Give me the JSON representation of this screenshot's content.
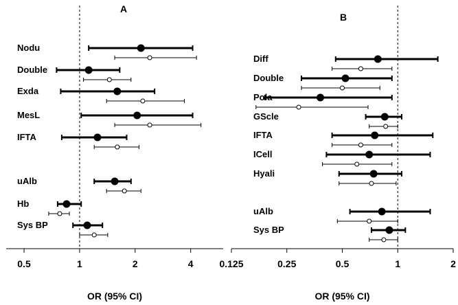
{
  "chart_data": [
    {
      "type": "forest",
      "panel_label": "A",
      "xlabel": "OR (95% CI)",
      "xscale": "log",
      "xlim": [
        0.4,
        6
      ],
      "reference_line": 1,
      "xticks": [
        0.5,
        1,
        2,
        4
      ],
      "xtick_labels": [
        "0.5",
        "1",
        "2",
        "4"
      ],
      "series_styles": {
        "filled": "thick line, filled circle",
        "open": "thin line, open circle"
      },
      "rows": [
        {
          "label": "Nodu",
          "filled": {
            "or": 2.15,
            "lo": 1.12,
            "hi": 4.1
          },
          "open": {
            "or": 2.4,
            "lo": 1.55,
            "hi": 4.3
          }
        },
        {
          "label": "Double",
          "filled": {
            "or": 1.12,
            "lo": 0.75,
            "hi": 1.65
          },
          "open": {
            "or": 1.45,
            "lo": 1.05,
            "hi": 1.9
          }
        },
        {
          "label": "Exda",
          "filled": {
            "or": 1.6,
            "lo": 0.79,
            "hi": 2.55
          },
          "open": {
            "or": 2.2,
            "lo": 1.4,
            "hi": 3.7
          }
        },
        {
          "label": "MesL",
          "filled": {
            "or": 2.05,
            "lo": 1.02,
            "hi": 4.1
          },
          "open": {
            "or": 2.4,
            "lo": 1.55,
            "hi": 4.55
          }
        },
        {
          "label": "IFTA",
          "filled": {
            "or": 1.25,
            "lo": 0.8,
            "hi": 1.8
          },
          "open": {
            "or": 1.6,
            "lo": 1.2,
            "hi": 2.1
          }
        },
        {
          "label": "uAlb",
          "filled": {
            "or": 1.55,
            "lo": 1.2,
            "hi": 1.9
          },
          "open": {
            "or": 1.75,
            "lo": 1.4,
            "hi": 2.15
          }
        },
        {
          "label": "Hb",
          "filled": {
            "or": 0.85,
            "lo": 0.76,
            "hi": 1.02
          },
          "open": {
            "or": 0.78,
            "lo": 0.68,
            "hi": 0.88
          }
        },
        {
          "label": "Sys BP",
          "filled": {
            "or": 1.1,
            "lo": 0.92,
            "hi": 1.33
          },
          "open": {
            "or": 1.2,
            "lo": 1.0,
            "hi": 1.42
          }
        }
      ]
    },
    {
      "type": "forest",
      "panel_label": "B",
      "xlabel": "OR (95% CI)",
      "xscale": "log",
      "xlim": [
        0.125,
        2
      ],
      "reference_line": 1,
      "xticks": [
        0.125,
        0.25,
        0.5,
        1,
        2
      ],
      "xtick_labels": [
        "0.125",
        "0.25",
        "0.5",
        "1",
        "2"
      ],
      "series_styles": {
        "filled": "thick line, filled circle",
        "open": "thin line, open circle"
      },
      "rows": [
        {
          "label": "Diff",
          "filled": {
            "or": 0.78,
            "lo": 0.46,
            "hi": 1.65
          },
          "open": {
            "or": 0.63,
            "lo": 0.44,
            "hi": 0.93
          }
        },
        {
          "label": "Double",
          "filled": {
            "or": 0.52,
            "lo": 0.3,
            "hi": 0.93
          },
          "open": {
            "or": 0.5,
            "lo": 0.3,
            "hi": 0.8
          }
        },
        {
          "label": "Pola",
          "filled": {
            "or": 0.38,
            "lo": 0.19,
            "hi": 0.93
          },
          "open": {
            "or": 0.29,
            "lo": 0.17,
            "hi": 0.69
          }
        },
        {
          "label": "GScle",
          "filled": {
            "or": 0.85,
            "lo": 0.67,
            "hi": 1.05
          },
          "open": {
            "or": 0.86,
            "lo": 0.7,
            "hi": 1.0
          }
        },
        {
          "label": "IFTA",
          "filled": {
            "or": 0.75,
            "lo": 0.44,
            "hi": 1.55
          },
          "open": {
            "or": 0.63,
            "lo": 0.44,
            "hi": 0.93
          }
        },
        {
          "label": "ICell",
          "filled": {
            "or": 0.7,
            "lo": 0.41,
            "hi": 1.5
          },
          "open": {
            "or": 0.6,
            "lo": 0.39,
            "hi": 0.93
          }
        },
        {
          "label": "Hyali",
          "filled": {
            "or": 0.74,
            "lo": 0.48,
            "hi": 1.05
          },
          "open": {
            "or": 0.72,
            "lo": 0.48,
            "hi": 0.98
          }
        },
        {
          "label": "uAlb",
          "filled": {
            "or": 0.82,
            "lo": 0.55,
            "hi": 1.5
          },
          "open": {
            "or": 0.7,
            "lo": 0.47,
            "hi": 1.0
          }
        },
        {
          "label": "Sys BP",
          "filled": {
            "or": 0.9,
            "lo": 0.72,
            "hi": 1.1
          },
          "open": {
            "or": 0.84,
            "lo": 0.7,
            "hi": 1.0
          }
        }
      ]
    }
  ]
}
